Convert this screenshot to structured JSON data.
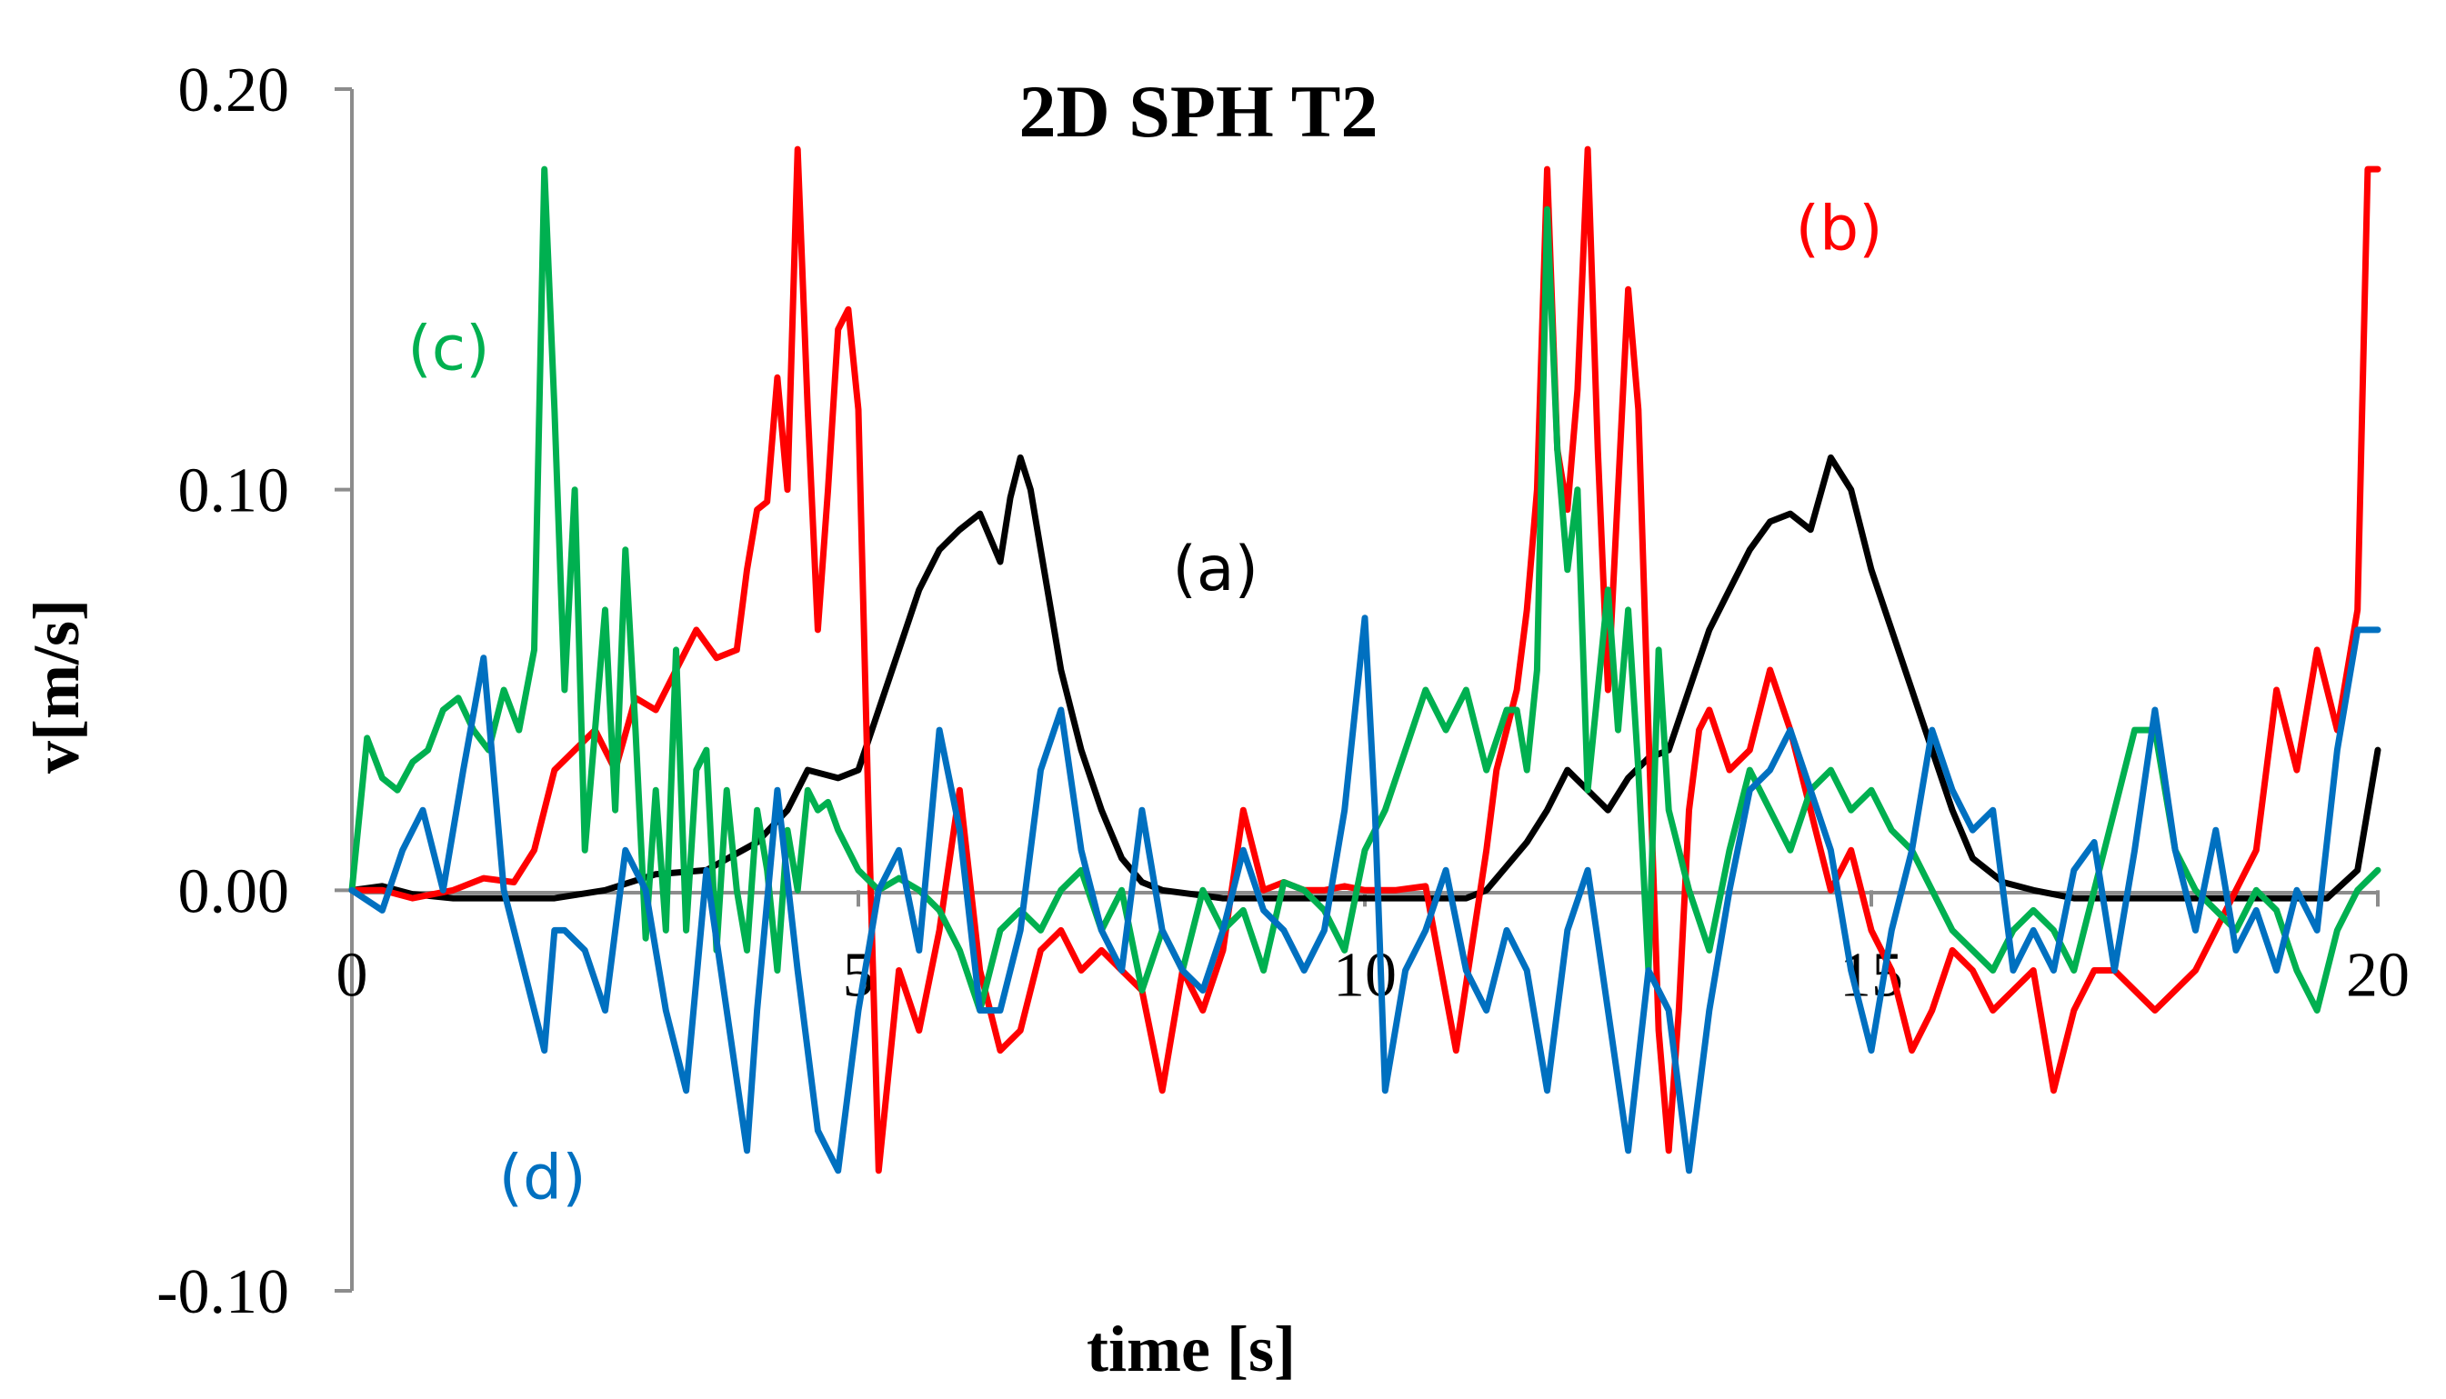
{
  "chart_data": {
    "type": "line",
    "title": "2D SPH T2",
    "xlabel": "time [s]",
    "ylabel": "v[m/s]",
    "xlim": [
      0,
      20
    ],
    "ylim": [
      -0.1,
      0.2
    ],
    "x_ticks": [
      {
        "v": 0,
        "label": "0"
      },
      {
        "v": 5,
        "label": "5"
      },
      {
        "v": 10,
        "label": "10"
      },
      {
        "v": 15,
        "label": "15"
      },
      {
        "v": 20,
        "label": "20"
      }
    ],
    "y_ticks": [
      {
        "v": 0.2,
        "label": "0.20"
      },
      {
        "v": 0.1,
        "label": "0.10"
      },
      {
        "v": 0.0,
        "label": "0.00"
      },
      {
        "v": -0.1,
        "label": "-0.10"
      }
    ],
    "grid": false,
    "legend": "none",
    "series": [
      {
        "label": "(a)",
        "color": "#000000",
        "label_pos": {
          "x": 8.1,
          "y": 0.075
        },
        "x": [
          0,
          0.3,
          0.6,
          1.0,
          1.5,
          2.0,
          2.5,
          3.0,
          3.5,
          4.0,
          4.3,
          4.5,
          4.8,
          5.0,
          5.2,
          5.4,
          5.6,
          5.8,
          6.0,
          6.2,
          6.4,
          6.5,
          6.6,
          6.7,
          6.8,
          6.9,
          7.0,
          7.2,
          7.4,
          7.6,
          7.8,
          8.0,
          8.3,
          8.6,
          9.0,
          9.5,
          10.0,
          10.5,
          11.0,
          11.2,
          11.4,
          11.6,
          11.8,
          12.0,
          12.2,
          12.4,
          12.6,
          12.8,
          13.0,
          13.2,
          13.4,
          13.6,
          13.8,
          14.0,
          14.2,
          14.4,
          14.6,
          14.8,
          15.0,
          15.2,
          15.4,
          15.6,
          15.8,
          16.0,
          16.3,
          16.6,
          17.0,
          17.5,
          18.0,
          18.5,
          19.0,
          19.5,
          19.8,
          20.0
        ],
        "y": [
          0,
          0.001,
          -0.001,
          -0.002,
          -0.002,
          -0.002,
          0.0,
          0.004,
          0.005,
          0.012,
          0.02,
          0.03,
          0.028,
          0.03,
          0.045,
          0.06,
          0.075,
          0.085,
          0.09,
          0.094,
          0.082,
          0.098,
          0.108,
          0.1,
          0.085,
          0.07,
          0.055,
          0.035,
          0.02,
          0.008,
          0.002,
          0.0,
          -0.001,
          -0.002,
          -0.002,
          -0.002,
          -0.002,
          -0.002,
          -0.002,
          0.0,
          0.006,
          0.012,
          0.02,
          0.03,
          0.025,
          0.02,
          0.028,
          0.033,
          0.035,
          0.05,
          0.065,
          0.075,
          0.085,
          0.092,
          0.094,
          0.09,
          0.108,
          0.1,
          0.08,
          0.065,
          0.05,
          0.035,
          0.02,
          0.008,
          0.002,
          0.0,
          -0.002,
          -0.002,
          -0.002,
          -0.002,
          -0.002,
          -0.002,
          0.005,
          0.035
        ]
      },
      {
        "label": "(b)",
        "color": "#ff0000",
        "label_pos": {
          "x": 14.25,
          "y": 0.16
        },
        "x": [
          0,
          0.3,
          0.6,
          1.0,
          1.3,
          1.6,
          1.8,
          2.0,
          2.2,
          2.4,
          2.6,
          2.8,
          3.0,
          3.2,
          3.4,
          3.6,
          3.8,
          3.9,
          4.0,
          4.1,
          4.2,
          4.3,
          4.4,
          4.5,
          4.6,
          4.7,
          4.8,
          4.9,
          5.0,
          5.1,
          5.2,
          5.4,
          5.6,
          5.8,
          6.0,
          6.2,
          6.4,
          6.6,
          6.8,
          7.0,
          7.2,
          7.4,
          7.6,
          7.8,
          8.0,
          8.2,
          8.4,
          8.6,
          8.8,
          9.0,
          9.2,
          9.4,
          9.6,
          9.8,
          10.0,
          10.3,
          10.6,
          10.9,
          11.2,
          11.3,
          11.5,
          11.6,
          11.7,
          11.8,
          11.9,
          12.0,
          12.1,
          12.2,
          12.3,
          12.4,
          12.5,
          12.6,
          12.7,
          12.8,
          12.9,
          13.0,
          13.1,
          13.2,
          13.3,
          13.4,
          13.6,
          13.8,
          14.0,
          14.2,
          14.4,
          14.6,
          14.8,
          15.0,
          15.2,
          15.4,
          15.6,
          15.8,
          16.0,
          16.2,
          16.4,
          16.6,
          16.8,
          17.0,
          17.2,
          17.4,
          17.6,
          17.8,
          18.0,
          18.2,
          18.4,
          18.6,
          18.8,
          19.0,
          19.2,
          19.4,
          19.6,
          19.8,
          19.9,
          20.0
        ],
        "y": [
          0,
          0.0,
          -0.002,
          0.0,
          0.003,
          0.002,
          0.01,
          0.03,
          0.035,
          0.04,
          0.03,
          0.048,
          0.045,
          0.055,
          0.065,
          0.058,
          0.06,
          0.08,
          0.095,
          0.097,
          0.128,
          0.1,
          0.185,
          0.12,
          0.065,
          0.1,
          0.14,
          0.145,
          0.12,
          0.02,
          -0.07,
          -0.02,
          -0.035,
          -0.01,
          0.025,
          -0.02,
          -0.04,
          -0.035,
          -0.015,
          -0.01,
          -0.02,
          -0.015,
          -0.02,
          -0.025,
          -0.05,
          -0.02,
          -0.03,
          -0.015,
          0.02,
          0.0,
          0.002,
          0.0,
          0.0,
          0.001,
          0.0,
          0.0,
          0.001,
          -0.04,
          0.01,
          0.03,
          0.05,
          0.07,
          0.1,
          0.18,
          0.11,
          0.095,
          0.125,
          0.185,
          0.11,
          0.05,
          0.1,
          0.15,
          0.12,
          0.04,
          -0.035,
          -0.065,
          -0.03,
          0.02,
          0.04,
          0.045,
          0.03,
          0.035,
          0.055,
          0.04,
          0.02,
          0.0,
          0.01,
          -0.01,
          -0.02,
          -0.04,
          -0.03,
          -0.015,
          -0.02,
          -0.03,
          -0.025,
          -0.02,
          -0.05,
          -0.03,
          -0.02,
          -0.02,
          -0.025,
          -0.03,
          -0.025,
          -0.02,
          -0.01,
          0.0,
          0.01,
          0.05,
          0.03,
          0.06,
          0.04,
          0.07,
          0.18,
          0.18
        ]
      },
      {
        "label": "(c)",
        "color": "#00b050",
        "label_pos": {
          "x": 0.55,
          "y": 0.13
        },
        "x": [
          0,
          0.15,
          0.3,
          0.45,
          0.6,
          0.75,
          0.9,
          1.05,
          1.2,
          1.35,
          1.5,
          1.65,
          1.8,
          1.9,
          2.0,
          2.1,
          2.2,
          2.3,
          2.4,
          2.5,
          2.6,
          2.7,
          2.8,
          2.9,
          3.0,
          3.1,
          3.2,
          3.3,
          3.4,
          3.5,
          3.6,
          3.7,
          3.8,
          3.9,
          4.0,
          4.1,
          4.2,
          4.3,
          4.4,
          4.5,
          4.6,
          4.7,
          4.8,
          5.0,
          5.2,
          5.4,
          5.6,
          5.8,
          6.0,
          6.2,
          6.4,
          6.6,
          6.8,
          7.0,
          7.2,
          7.4,
          7.6,
          7.8,
          8.0,
          8.2,
          8.4,
          8.6,
          8.8,
          9.0,
          9.2,
          9.4,
          9.6,
          9.8,
          10.0,
          10.2,
          10.4,
          10.6,
          10.8,
          11.0,
          11.2,
          11.4,
          11.5,
          11.6,
          11.7,
          11.8,
          11.9,
          12.0,
          12.1,
          12.2,
          12.3,
          12.4,
          12.5,
          12.6,
          12.7,
          12.8,
          12.9,
          13.0,
          13.2,
          13.4,
          13.6,
          13.8,
          14.0,
          14.2,
          14.4,
          14.6,
          14.8,
          15.0,
          15.2,
          15.4,
          15.6,
          15.8,
          16.0,
          16.2,
          16.4,
          16.6,
          16.8,
          17.0,
          17.2,
          17.4,
          17.6,
          17.8,
          18.0,
          18.2,
          18.4,
          18.6,
          18.8,
          19.0,
          19.2,
          19.4,
          19.6,
          19.8,
          20.0
        ],
        "y": [
          0,
          0.038,
          0.028,
          0.025,
          0.032,
          0.035,
          0.045,
          0.048,
          0.04,
          0.035,
          0.05,
          0.04,
          0.06,
          0.18,
          0.12,
          0.05,
          0.1,
          0.01,
          0.04,
          0.07,
          0.02,
          0.085,
          0.04,
          -0.012,
          0.025,
          -0.01,
          0.06,
          -0.01,
          0.03,
          0.035,
          -0.015,
          0.025,
          0.0,
          -0.015,
          0.02,
          0.005,
          -0.02,
          0.015,
          0.0,
          0.025,
          0.02,
          0.022,
          0.015,
          0.005,
          0.0,
          0.003,
          0.0,
          -0.005,
          -0.015,
          -0.03,
          -0.01,
          -0.005,
          -0.01,
          0.0,
          0.005,
          -0.01,
          0.0,
          -0.025,
          -0.01,
          -0.02,
          0.0,
          -0.01,
          -0.005,
          -0.02,
          0.002,
          0.0,
          -0.005,
          -0.015,
          0.01,
          0.02,
          0.035,
          0.05,
          0.04,
          0.05,
          0.03,
          0.045,
          0.045,
          0.03,
          0.055,
          0.17,
          0.11,
          0.08,
          0.1,
          0.025,
          0.05,
          0.075,
          0.04,
          0.07,
          0.03,
          -0.02,
          0.06,
          0.02,
          0.0,
          -0.015,
          0.01,
          0.03,
          0.02,
          0.01,
          0.025,
          0.03,
          0.02,
          0.025,
          0.015,
          0.01,
          0.0,
          -0.01,
          -0.015,
          -0.02,
          -0.01,
          -0.005,
          -0.01,
          -0.02,
          0.0,
          0.02,
          0.04,
          0.04,
          0.01,
          0.0,
          -0.005,
          -0.01,
          0.0,
          -0.005,
          -0.02,
          -0.03,
          -0.01,
          0.0,
          0.005
        ]
      },
      {
        "label": "(d)",
        "color": "#0070c0",
        "label_pos": {
          "x": 1.45,
          "y": -0.077
        },
        "x": [
          0,
          0.3,
          0.5,
          0.7,
          0.9,
          1.1,
          1.3,
          1.5,
          1.7,
          1.9,
          2.0,
          2.1,
          2.3,
          2.5,
          2.7,
          2.9,
          3.1,
          3.3,
          3.5,
          3.7,
          3.9,
          4.0,
          4.2,
          4.4,
          4.6,
          4.8,
          5.0,
          5.2,
          5.4,
          5.6,
          5.8,
          6.0,
          6.2,
          6.4,
          6.6,
          6.8,
          7.0,
          7.2,
          7.4,
          7.6,
          7.8,
          8.0,
          8.2,
          8.4,
          8.6,
          8.8,
          9.0,
          9.2,
          9.4,
          9.6,
          9.8,
          10.0,
          10.1,
          10.2,
          10.4,
          10.6,
          10.8,
          11.0,
          11.2,
          11.4,
          11.6,
          11.8,
          12.0,
          12.2,
          12.4,
          12.6,
          12.8,
          13.0,
          13.2,
          13.4,
          13.6,
          13.8,
          14.0,
          14.2,
          14.4,
          14.6,
          14.8,
          15.0,
          15.2,
          15.4,
          15.6,
          15.8,
          16.0,
          16.2,
          16.4,
          16.6,
          16.8,
          17.0,
          17.2,
          17.4,
          17.6,
          17.8,
          18.0,
          18.2,
          18.4,
          18.6,
          18.8,
          19.0,
          19.2,
          19.4,
          19.6,
          19.8,
          20.0
        ],
        "y": [
          0,
          -0.005,
          0.01,
          0.02,
          0.0,
          0.03,
          0.058,
          0.0,
          -0.02,
          -0.04,
          -0.01,
          -0.01,
          -0.015,
          -0.03,
          0.01,
          0.0,
          -0.03,
          -0.05,
          0.005,
          -0.03,
          -0.065,
          -0.03,
          0.025,
          -0.02,
          -0.06,
          -0.07,
          -0.03,
          0.0,
          0.01,
          -0.015,
          0.04,
          0.015,
          -0.03,
          -0.03,
          -0.01,
          0.03,
          0.045,
          0.01,
          -0.01,
          -0.02,
          0.02,
          -0.01,
          -0.02,
          -0.025,
          -0.01,
          0.01,
          -0.005,
          -0.01,
          -0.02,
          -0.01,
          0.02,
          0.068,
          0.02,
          -0.05,
          -0.02,
          -0.01,
          0.005,
          -0.02,
          -0.03,
          -0.01,
          -0.02,
          -0.05,
          -0.01,
          0.005,
          -0.03,
          -0.065,
          -0.02,
          -0.03,
          -0.07,
          -0.03,
          0.0,
          0.025,
          0.03,
          0.04,
          0.025,
          0.01,
          -0.02,
          -0.04,
          -0.01,
          0.01,
          0.04,
          0.025,
          0.015,
          0.02,
          -0.02,
          -0.01,
          -0.02,
          0.005,
          0.012,
          -0.02,
          0.01,
          0.045,
          0.01,
          -0.01,
          0.015,
          -0.015,
          -0.005,
          -0.02,
          0.0,
          -0.01,
          0.035,
          0.065,
          0.065
        ]
      }
    ]
  }
}
